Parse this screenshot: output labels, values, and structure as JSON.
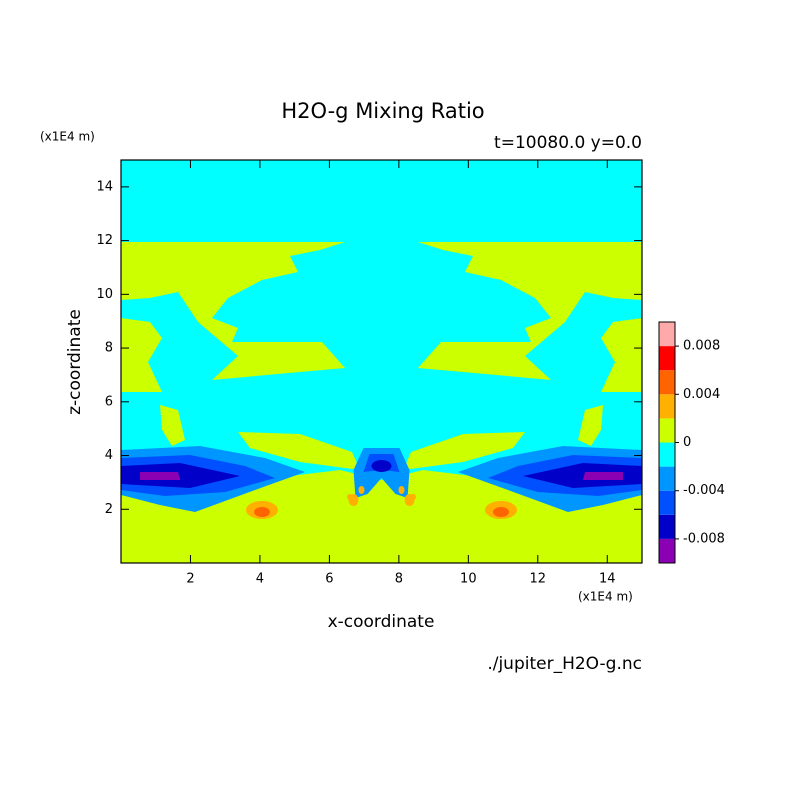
{
  "chart_data": {
    "type": "contour",
    "title": "H2O-g Mixing Ratio",
    "subtitle": "t=10080.0 y=0.0",
    "x_label": "x-coordinate",
    "y_label": "z-coordinate",
    "x_unit": "(x1E4 m)",
    "y_unit": "(x1E4 m)",
    "source": "./jupiter_H2O-g.nc",
    "xlim": [
      0,
      15
    ],
    "ylim": [
      0,
      15
    ],
    "xticks": [
      2,
      4,
      6,
      8,
      10,
      12,
      14
    ],
    "yticks": [
      2,
      4,
      6,
      8,
      10,
      12,
      14
    ],
    "levels": [
      -0.01,
      -0.008,
      -0.006,
      -0.004,
      -0.002,
      0,
      0.002,
      0.004,
      0.006,
      0.008,
      0.01
    ],
    "colors": [
      "#8c00b4",
      "#0000c8",
      "#0050ff",
      "#0096ff",
      "#00ffff",
      "#ccff00",
      "#ffb000",
      "#ff6400",
      "#ff0000",
      "#ffaaaa"
    ],
    "colorbar_ticks": [
      0.008,
      0.004,
      0,
      -0.004,
      -0.008
    ]
  }
}
